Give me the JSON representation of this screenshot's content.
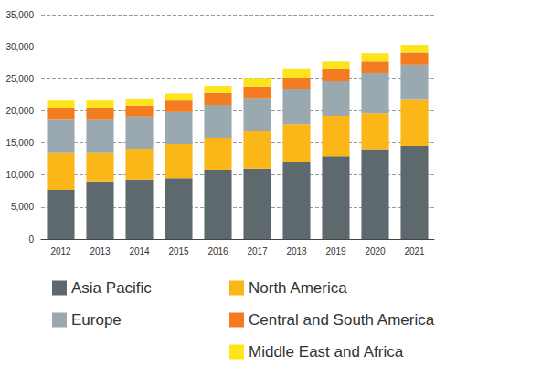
{
  "chart_data": {
    "type": "bar",
    "stacked": true,
    "grid": true,
    "legend": "bottom",
    "categories": [
      "2012",
      "2013",
      "2014",
      "2015",
      "2016",
      "2017",
      "2018",
      "2019",
      "2020",
      "2021"
    ],
    "series": [
      {
        "name": "Asia Pacific",
        "color": "#5e696e",
        "values": [
          7700,
          9000,
          9300,
          9500,
          10800,
          11000,
          12000,
          12900,
          14000,
          14500
        ]
      },
      {
        "name": "North America",
        "color": "#fbb617",
        "values": [
          5700,
          4400,
          4800,
          5300,
          5000,
          5800,
          5900,
          6300,
          5600,
          7200
        ]
      },
      {
        "name": "Europe",
        "color": "#9aa9b0",
        "values": [
          5300,
          5300,
          5000,
          5000,
          5100,
          5200,
          5500,
          5400,
          6300,
          5500
        ]
      },
      {
        "name": "Central and South America",
        "color": "#f47c20",
        "values": [
          1800,
          1800,
          1700,
          1800,
          1900,
          1800,
          1800,
          1900,
          1800,
          1900
        ]
      },
      {
        "name": "Middle East and Africa",
        "color": "#fde41b",
        "values": [
          1100,
          1100,
          1100,
          1100,
          1100,
          1200,
          1300,
          1200,
          1300,
          1200
        ]
      }
    ],
    "ylim": [
      0,
      35000
    ],
    "yticks": [
      0,
      {
        "value": 5000,
        "label": "5,000"
      },
      {
        "value": 10000,
        "label": "10,000"
      },
      {
        "value": 15000,
        "label": "15,000"
      },
      {
        "value": 20000,
        "label": "20,000"
      },
      {
        "value": 25000,
        "label": "25,000"
      },
      {
        "value": 30000,
        "label": "30,000"
      },
      {
        "value": 35000,
        "label": "35,000"
      }
    ]
  }
}
